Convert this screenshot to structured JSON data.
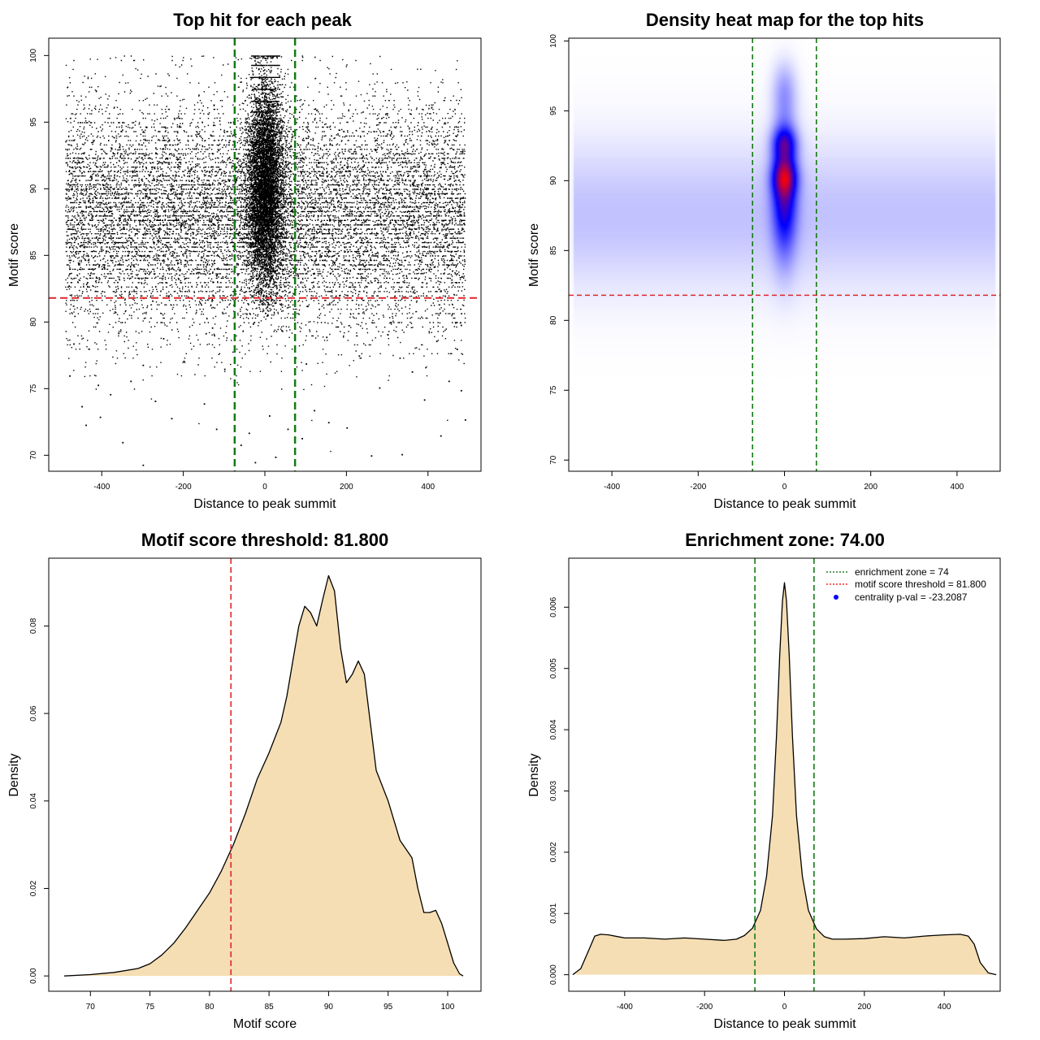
{
  "chart_data": [
    {
      "type": "scatter",
      "title": "Top hit for each peak",
      "xlabel": "Distance to peak summit",
      "ylabel": "Motif score",
      "xlim": [
        -530,
        530
      ],
      "ylim": [
        68.8,
        101.3
      ],
      "x_ticks": [
        -400,
        -200,
        0,
        200,
        400
      ],
      "y_ticks": [
        70,
        75,
        80,
        85,
        90,
        95,
        100
      ],
      "vlines": [
        -74,
        74
      ],
      "hline": 81.8,
      "grid": false,
      "points_summary": "approx. 20000 peaks; broad band between 80 and 100 across -500 to 500, dense column near 0 from 81 to 100",
      "points": [
        [
          -450,
          73.7
        ],
        [
          -440,
          72.3
        ],
        [
          -405,
          72.9
        ],
        [
          -350,
          71.0
        ],
        [
          -300,
          69.3
        ],
        [
          -230,
          72.8
        ],
        [
          -60,
          70.8
        ],
        [
          -25,
          69.5
        ],
        [
          25,
          69.9
        ],
        [
          90,
          71.3
        ],
        [
          155,
          72.5
        ],
        [
          260,
          70.0
        ],
        [
          335,
          70.1
        ],
        [
          430,
          71.5
        ],
        [
          480,
          74.9
        ],
        [
          490,
          72.7
        ],
        [
          -480,
          76.0
        ],
        [
          -410,
          75.3
        ],
        [
          -380,
          74.6
        ],
        [
          -330,
          75.6
        ],
        [
          -270,
          74.1
        ],
        [
          -150,
          73.9
        ],
        [
          -120,
          72.0
        ],
        [
          -40,
          71.7
        ],
        [
          10,
          73.0
        ],
        [
          55,
          72.0
        ],
        [
          120,
          73.4
        ],
        [
          200,
          72.1
        ],
        [
          280,
          75.1
        ],
        [
          390,
          74.2
        ],
        [
          450,
          75.6
        ],
        [
          -300,
          76.8
        ],
        [
          -200,
          77.1
        ],
        [
          -100,
          76.5
        ],
        [
          100,
          76.9
        ],
        [
          230,
          77.5
        ],
        [
          360,
          76.3
        ],
        [
          470,
          78.0
        ],
        [
          -470,
          78.4
        ],
        [
          -360,
          79.2
        ],
        [
          -250,
          78.8
        ],
        [
          -130,
          79.6
        ],
        [
          -30,
          79.9
        ],
        [
          0,
          80.7
        ],
        [
          5,
          81.2
        ],
        [
          -5,
          80.9
        ],
        [
          40,
          79.4
        ],
        [
          150,
          78.9
        ],
        [
          300,
          79.1
        ],
        [
          420,
          78.6
        ],
        [
          480,
          79.8
        ]
      ]
    },
    {
      "type": "heatmap",
      "title": "Density heat map for the top hits",
      "xlabel": "Distance to peak summit",
      "ylabel": "Motif score",
      "xlim": [
        -500,
        500
      ],
      "ylim": [
        69.2,
        100.2
      ],
      "x_ticks": [
        -400,
        -200,
        0,
        200,
        400
      ],
      "y_ticks": [
        70,
        75,
        80,
        85,
        90,
        95,
        100
      ],
      "vlines": [
        -74,
        74
      ],
      "hline": 81.8,
      "colors": [
        "#ffffff",
        "#0000ff",
        "#ff0000"
      ],
      "hotspots": [
        {
          "x": 0,
          "y": 90.2,
          "level": "high"
        },
        {
          "x": 0,
          "y": 92.7,
          "level": "high"
        }
      ]
    },
    {
      "type": "area",
      "title": "Motif score threshold: 81.800",
      "xlabel": "Motif score",
      "ylabel": "Density",
      "xlim": [
        66.5,
        102.8
      ],
      "ylim": [
        -0.0035,
        0.0955
      ],
      "x_ticks": [
        70,
        75,
        80,
        85,
        90,
        95,
        100
      ],
      "y_ticks": [
        0.0,
        0.02,
        0.04,
        0.06,
        0.08
      ],
      "y_tick_labels": [
        "0.00",
        "0.02",
        "0.04",
        "0.06",
        "0.08"
      ],
      "vline": 81.8,
      "fill": "#f5deb3",
      "x": [
        67.8,
        70,
        72,
        74,
        75,
        76,
        77,
        78,
        79,
        80,
        81,
        82,
        83,
        84,
        85,
        86,
        86.5,
        87,
        87.5,
        88,
        88.5,
        89,
        89.5,
        90,
        90.5,
        91,
        91.5,
        92,
        92.5,
        93,
        93.5,
        94,
        95,
        96,
        97,
        97.5,
        98,
        98.5,
        99,
        99.5,
        100,
        100.5,
        101,
        101.3
      ],
      "y": [
        0.0,
        0.0003,
        0.0008,
        0.0017,
        0.0028,
        0.0048,
        0.0075,
        0.011,
        0.015,
        0.019,
        0.024,
        0.03,
        0.037,
        0.045,
        0.051,
        0.058,
        0.064,
        0.072,
        0.08,
        0.0845,
        0.083,
        0.08,
        0.086,
        0.0915,
        0.088,
        0.075,
        0.067,
        0.069,
        0.072,
        0.069,
        0.058,
        0.047,
        0.04,
        0.031,
        0.027,
        0.02,
        0.0145,
        0.0145,
        0.015,
        0.012,
        0.0075,
        0.003,
        0.0005,
        0.0
      ]
    },
    {
      "type": "area",
      "title": "Enrichment zone: 74.00",
      "xlabel": "Distance to peak summit",
      "ylabel": "Density",
      "xlim": [
        -540,
        540
      ],
      "ylim": [
        -0.00027,
        0.0068
      ],
      "x_ticks": [
        -400,
        -200,
        0,
        200,
        400
      ],
      "y_ticks": [
        0.0,
        0.001,
        0.002,
        0.003,
        0.004,
        0.005,
        0.006
      ],
      "y_tick_labels": [
        "0.000",
        "0.001",
        "0.002",
        "0.003",
        "0.004",
        "0.005",
        "0.006"
      ],
      "vlines": [
        -74,
        74
      ],
      "fill": "#f5deb3",
      "legend_position": "top-right",
      "legend": [
        {
          "label": "enrichment zone = 74",
          "color": "#006400",
          "kind": "line"
        },
        {
          "label": "motif score threshold = 81.800",
          "color": "#ff0000",
          "kind": "line"
        },
        {
          "label": "centrality p-val = -23.2087",
          "color": "#0000ff",
          "kind": "point"
        }
      ],
      "x": [
        -530,
        -510,
        -490,
        -475,
        -460,
        -440,
        -400,
        -350,
        -300,
        -250,
        -200,
        -150,
        -120,
        -100,
        -80,
        -60,
        -45,
        -30,
        -20,
        -12,
        -5,
        0,
        5,
        12,
        20,
        30,
        45,
        60,
        80,
        100,
        120,
        150,
        200,
        250,
        300,
        350,
        400,
        440,
        460,
        475,
        490,
        510,
        530
      ],
      "y": [
        0.0,
        0.0001,
        0.0004,
        0.00063,
        0.00066,
        0.00065,
        0.0006,
        0.0006,
        0.00058,
        0.0006,
        0.00058,
        0.00056,
        0.00058,
        0.00064,
        0.00076,
        0.00105,
        0.0016,
        0.0026,
        0.0039,
        0.0052,
        0.0061,
        0.0064,
        0.0061,
        0.0052,
        0.0039,
        0.0026,
        0.0016,
        0.00105,
        0.00075,
        0.00062,
        0.00058,
        0.00058,
        0.00059,
        0.00062,
        0.0006,
        0.00063,
        0.00065,
        0.00066,
        0.00063,
        0.0005,
        0.0002,
        3e-05,
        0.0
      ]
    }
  ]
}
